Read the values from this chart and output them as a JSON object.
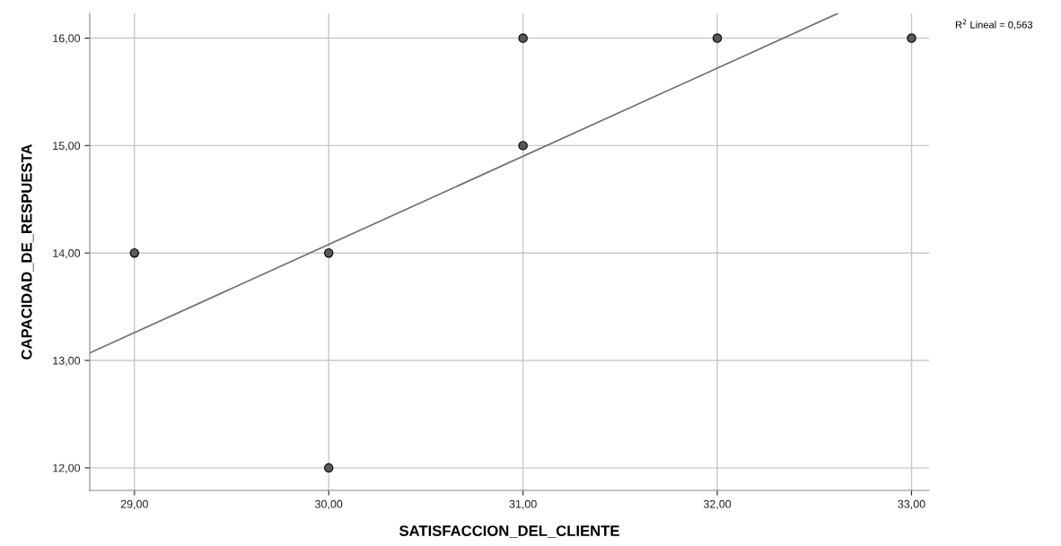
{
  "chart_data": {
    "type": "scatter",
    "xlabel": "SATISFACCION_DEL_CLIENTE",
    "ylabel": "CAPACIDAD_DE_RESPUESTA",
    "xlim": [
      28.77,
      33.09
    ],
    "ylim": [
      11.79,
      16.23
    ],
    "xticks": [
      {
        "value": 29,
        "label": "29,00"
      },
      {
        "value": 30,
        "label": "30,00"
      },
      {
        "value": 31,
        "label": "31,00"
      },
      {
        "value": 32,
        "label": "32,00"
      },
      {
        "value": 33,
        "label": "33,00"
      }
    ],
    "yticks": [
      {
        "value": 12,
        "label": "12,00"
      },
      {
        "value": 13,
        "label": "13,00"
      },
      {
        "value": 14,
        "label": "14,00"
      },
      {
        "value": 15,
        "label": "15,00"
      },
      {
        "value": 16,
        "label": "16,00"
      }
    ],
    "grid": true,
    "series": [
      {
        "marker": "circle",
        "color": "#595959",
        "x": [
          29,
          30,
          30,
          31,
          31,
          32,
          33
        ],
        "values": [
          14,
          14,
          12,
          16,
          15,
          16,
          16
        ]
      },
      {
        "type": "line",
        "marker": "none",
        "color": "#6e6e6e",
        "x": [
          28.77,
          32.62
        ],
        "values": [
          13.07,
          16.23
        ]
      }
    ],
    "annotations": [
      "R$^{2}$ Lineal = 0,563"
    ]
  }
}
